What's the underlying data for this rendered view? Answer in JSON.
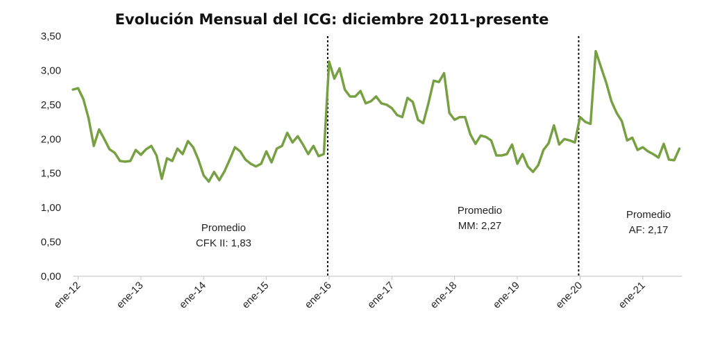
{
  "chart_data": {
    "type": "line",
    "title": "Evolución Mensual del ICG: diciembre 2011-presente",
    "xlabel": "",
    "ylabel": "",
    "ylim": [
      0,
      3.5
    ],
    "y_ticks": [
      "0,00",
      "0,50",
      "1,00",
      "1,50",
      "2,00",
      "2,50",
      "3,00",
      "3,50"
    ],
    "x_tick_labels": [
      "ene-12",
      "ene-13",
      "ene-14",
      "ene-15",
      "ene-16",
      "ene-17",
      "ene-18",
      "ene-19",
      "ene-20",
      "ene-21"
    ],
    "grid": false,
    "line_color": "#77a043",
    "x_start": "dic-11",
    "series": [
      {
        "values": [
          2.72,
          2.74,
          2.58,
          2.3,
          1.9,
          2.14,
          2.0,
          1.85,
          1.8,
          1.68,
          1.67,
          1.68,
          1.84,
          1.77,
          1.85,
          1.9,
          1.76,
          1.42,
          1.72,
          1.68,
          1.86,
          1.78,
          1.97,
          1.88,
          1.7,
          1.47,
          1.38,
          1.52,
          1.4,
          1.53,
          1.7,
          1.88,
          1.82,
          1.7,
          1.64,
          1.6,
          1.64,
          1.82,
          1.66,
          1.86,
          1.9,
          2.09,
          1.95,
          2.04,
          1.92,
          1.78,
          1.9,
          1.75,
          1.78,
          3.13,
          2.88,
          3.03,
          2.72,
          2.62,
          2.62,
          2.7,
          2.52,
          2.55,
          2.62,
          2.52,
          2.5,
          2.45,
          2.35,
          2.32,
          2.6,
          2.54,
          2.28,
          2.23,
          2.52,
          2.85,
          2.83,
          2.96,
          2.38,
          2.28,
          2.32,
          2.32,
          2.07,
          1.93,
          2.05,
          2.03,
          1.98,
          1.76,
          1.76,
          1.78,
          1.92,
          1.64,
          1.78,
          1.6,
          1.52,
          1.62,
          1.84,
          1.94,
          2.2,
          1.92,
          2.0,
          1.98,
          1.95,
          2.32,
          2.25,
          2.22,
          3.28,
          3.05,
          2.82,
          2.55,
          2.38,
          2.26,
          1.98,
          2.02,
          1.84,
          1.88,
          1.82,
          1.78,
          1.73,
          1.93,
          1.7,
          1.69,
          1.86
        ]
      }
    ],
    "period_dividers": [
      "ene-16",
      "ene-20"
    ],
    "annotations": [
      {
        "line1": "Promedio",
        "line2": "CFK II: 1,83"
      },
      {
        "line1": "Promedio",
        "line2": "MM: 2,27"
      },
      {
        "line1": "Promedio",
        "line2": "AF: 2,17"
      }
    ]
  }
}
